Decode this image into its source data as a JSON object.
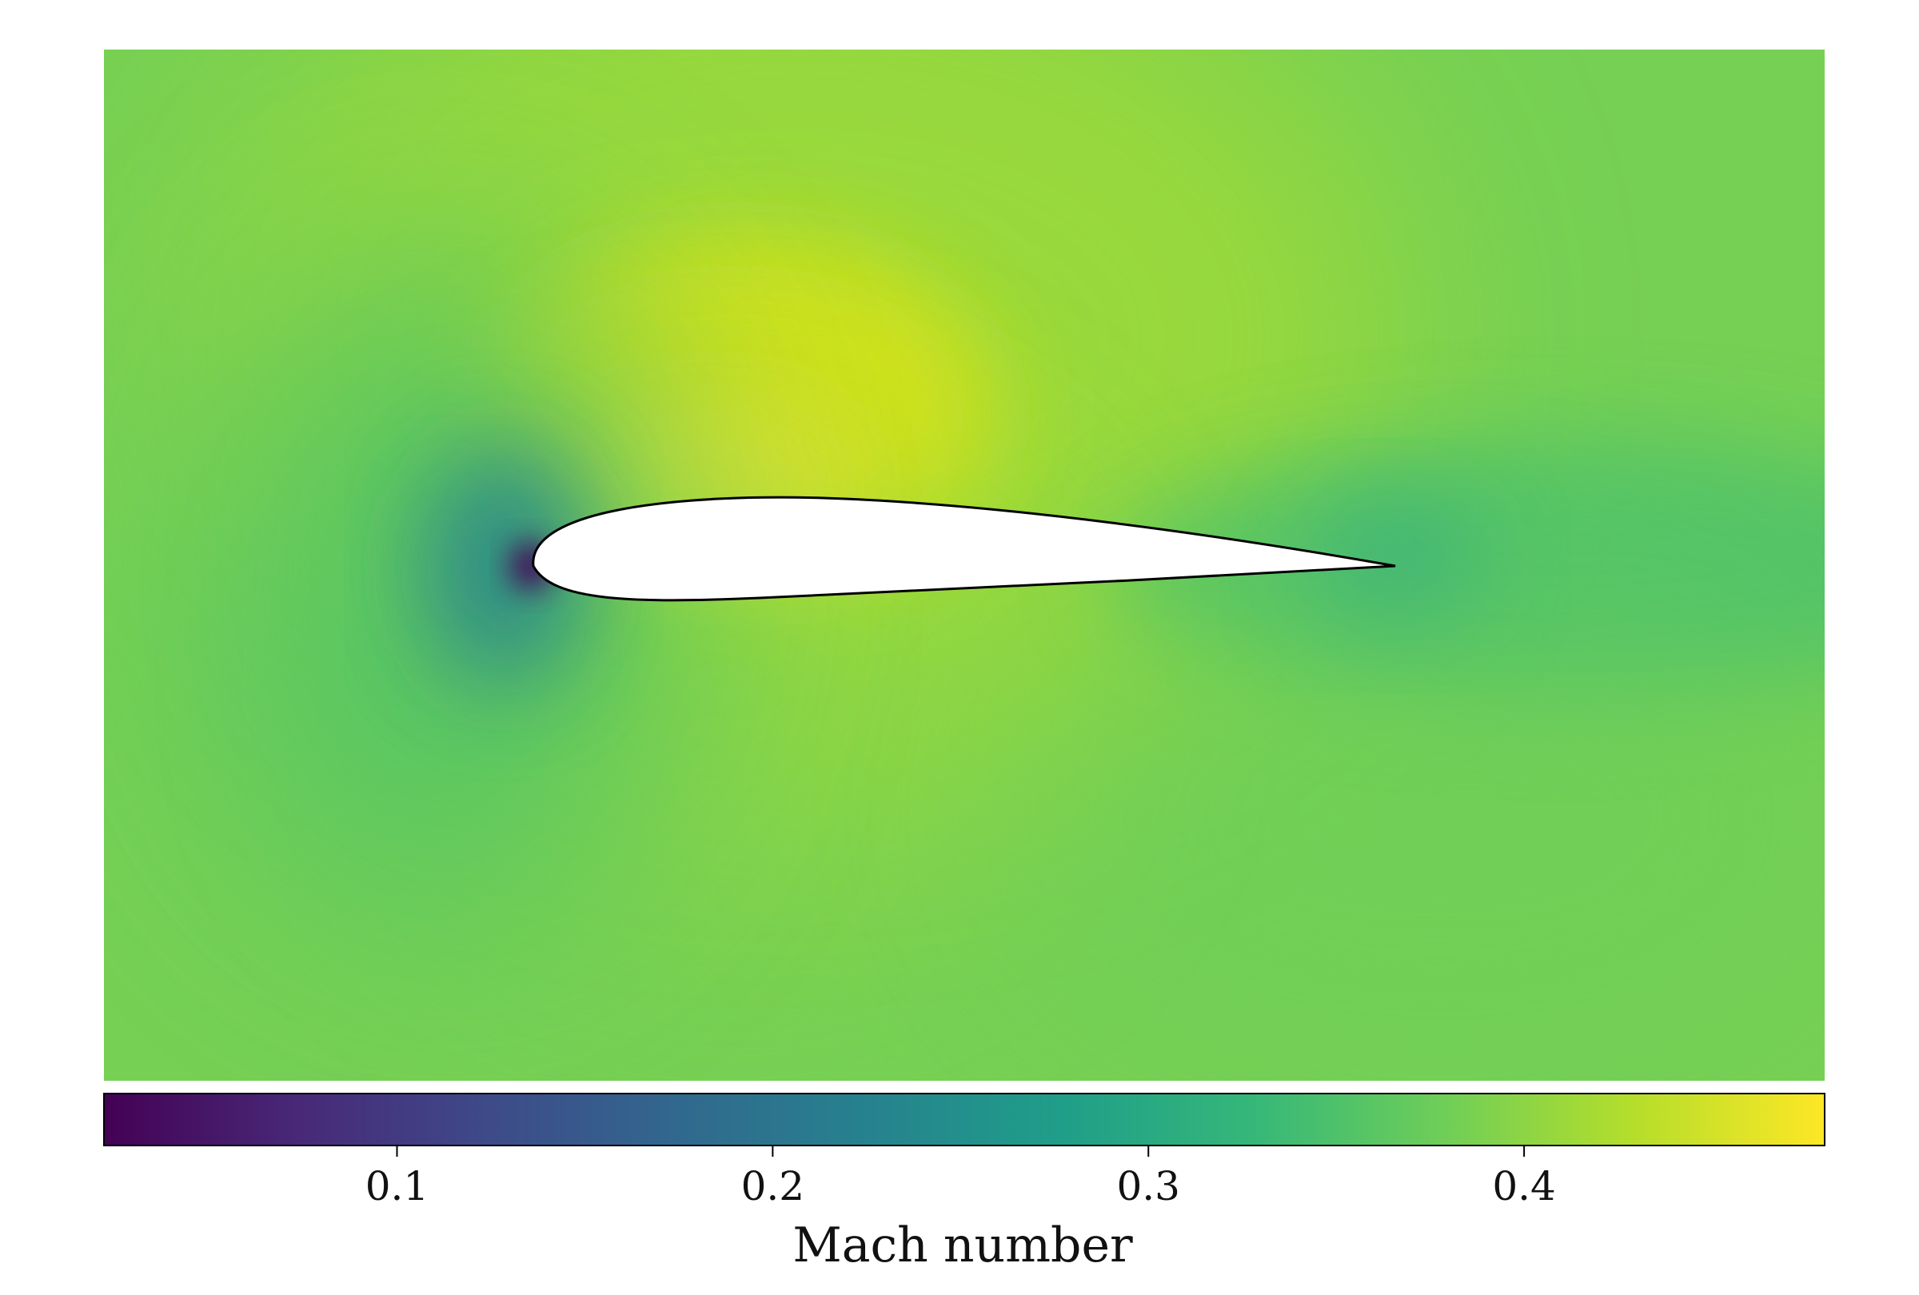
{
  "chart_data": {
    "type": "heatmap",
    "title": "",
    "xlabel": "",
    "ylabel": "",
    "axes_visible": false,
    "field": "Mach number contour around an airfoil",
    "colormap": "viridis",
    "colormap_stops": [
      "#440154",
      "#482878",
      "#3e4a89",
      "#31688e",
      "#26828e",
      "#1f9e89",
      "#35b779",
      "#6ece58",
      "#b5de2b",
      "#fde725"
    ],
    "colorbar": {
      "label": "Mach number",
      "orientation": "horizontal",
      "placement": "bottom",
      "range": [
        0.022,
        0.48
      ],
      "ticks": [
        0.1,
        0.2,
        0.3,
        0.4
      ],
      "tick_labels": [
        "0.1",
        "0.2",
        "0.3",
        "0.4"
      ]
    },
    "freestream_mach": 0.37,
    "max_mach_region": "above leading edge (suction side)",
    "min_mach_region": "leading-edge stagnation point",
    "airfoil": {
      "fill": "#ffffff",
      "outline": "#000000"
    }
  }
}
